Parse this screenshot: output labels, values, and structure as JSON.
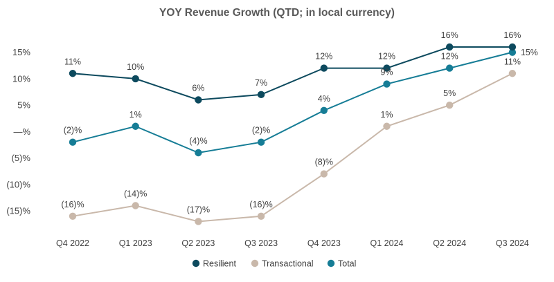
{
  "chart_data": {
    "type": "line",
    "title": "YOY Revenue Growth (QTD; in local currency)",
    "xlabel": "",
    "ylabel": "",
    "categories": [
      "Q4 2022",
      "Q1 2023",
      "Q2 2023",
      "Q3 2023",
      "Q4 2023",
      "Q1 2024",
      "Q2 2024",
      "Q3 2024"
    ],
    "y_ticks": [
      {
        "value": 15,
        "label": "15%"
      },
      {
        "value": 10,
        "label": "10%"
      },
      {
        "value": 5,
        "label": "5%"
      },
      {
        "value": 0,
        "label": "—%"
      },
      {
        "value": -5,
        "label": "(5)%"
      },
      {
        "value": -10,
        "label": "(10)%"
      },
      {
        "value": -15,
        "label": "(15)%"
      }
    ],
    "ylim": [
      -18,
      17
    ],
    "grid": false,
    "legend_position": "bottom",
    "series": [
      {
        "name": "Resilient",
        "color": "#0d4a5e",
        "values": [
          11,
          10,
          6,
          7,
          12,
          12,
          16,
          16
        ],
        "labels": [
          "11%",
          "10%",
          "6%",
          "7%",
          "12%",
          "12%",
          "16%",
          "16%"
        ],
        "label_position": "above"
      },
      {
        "name": "Transactional",
        "color": "#c9b8aa",
        "values": [
          -16,
          -14,
          -17,
          -16,
          -8,
          1,
          5,
          11
        ],
        "labels": [
          "(16)%",
          "(14)%",
          "(17)%",
          "(16)%",
          "(8)%",
          "1%",
          "5%",
          "11%"
        ],
        "label_position": "above"
      },
      {
        "name": "Total",
        "color": "#167d96",
        "values": [
          -2,
          1,
          -4,
          -2,
          4,
          9,
          12,
          15
        ],
        "labels": [
          "(2)%",
          "1%",
          "(4)%",
          "(2)%",
          "4%",
          "9%",
          "12%",
          "15%"
        ],
        "label_position": "above_except_last_right"
      }
    ]
  }
}
